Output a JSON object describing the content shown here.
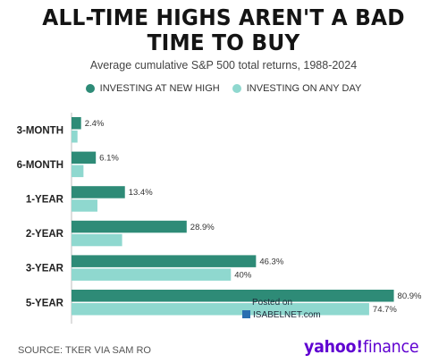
{
  "chart_data": {
    "type": "bar",
    "orientation": "horizontal",
    "title": "ALL-TIME HIGHS AREN'T A BAD TIME TO BUY",
    "subtitle": "Average cumulative S&P 500 total returns, 1988-2024",
    "categories": [
      "3-MONTH",
      "6-MONTH",
      "1-YEAR",
      "2-YEAR",
      "3-YEAR",
      "5-YEAR"
    ],
    "series": [
      {
        "name": "INVESTING AT NEW HIGH",
        "color": "#2e8b77",
        "values": [
          2.4,
          6.1,
          13.4,
          28.9,
          46.3,
          80.9
        ],
        "labels": [
          "2.4%",
          "6.1%",
          "13.4%",
          "28.9%",
          "46.3%",
          "80.9%"
        ]
      },
      {
        "name": "INVESTING ON ANY DAY",
        "color": "#8fd8cf",
        "values": [
          null,
          null,
          null,
          null,
          40,
          74.7
        ],
        "labels": [
          "",
          "",
          "",
          "",
          "40%",
          "74.7%"
        ]
      }
    ],
    "xlim": [
      0,
      81
    ],
    "grid": false,
    "legend_position": "top"
  },
  "watermark": {
    "line1": "Posted on",
    "line2": "ISABELNET.com"
  },
  "source": "SOURCE: TKER VIA SAM RO",
  "logo": {
    "brand": "yahoo!",
    "suffix": "finance"
  }
}
